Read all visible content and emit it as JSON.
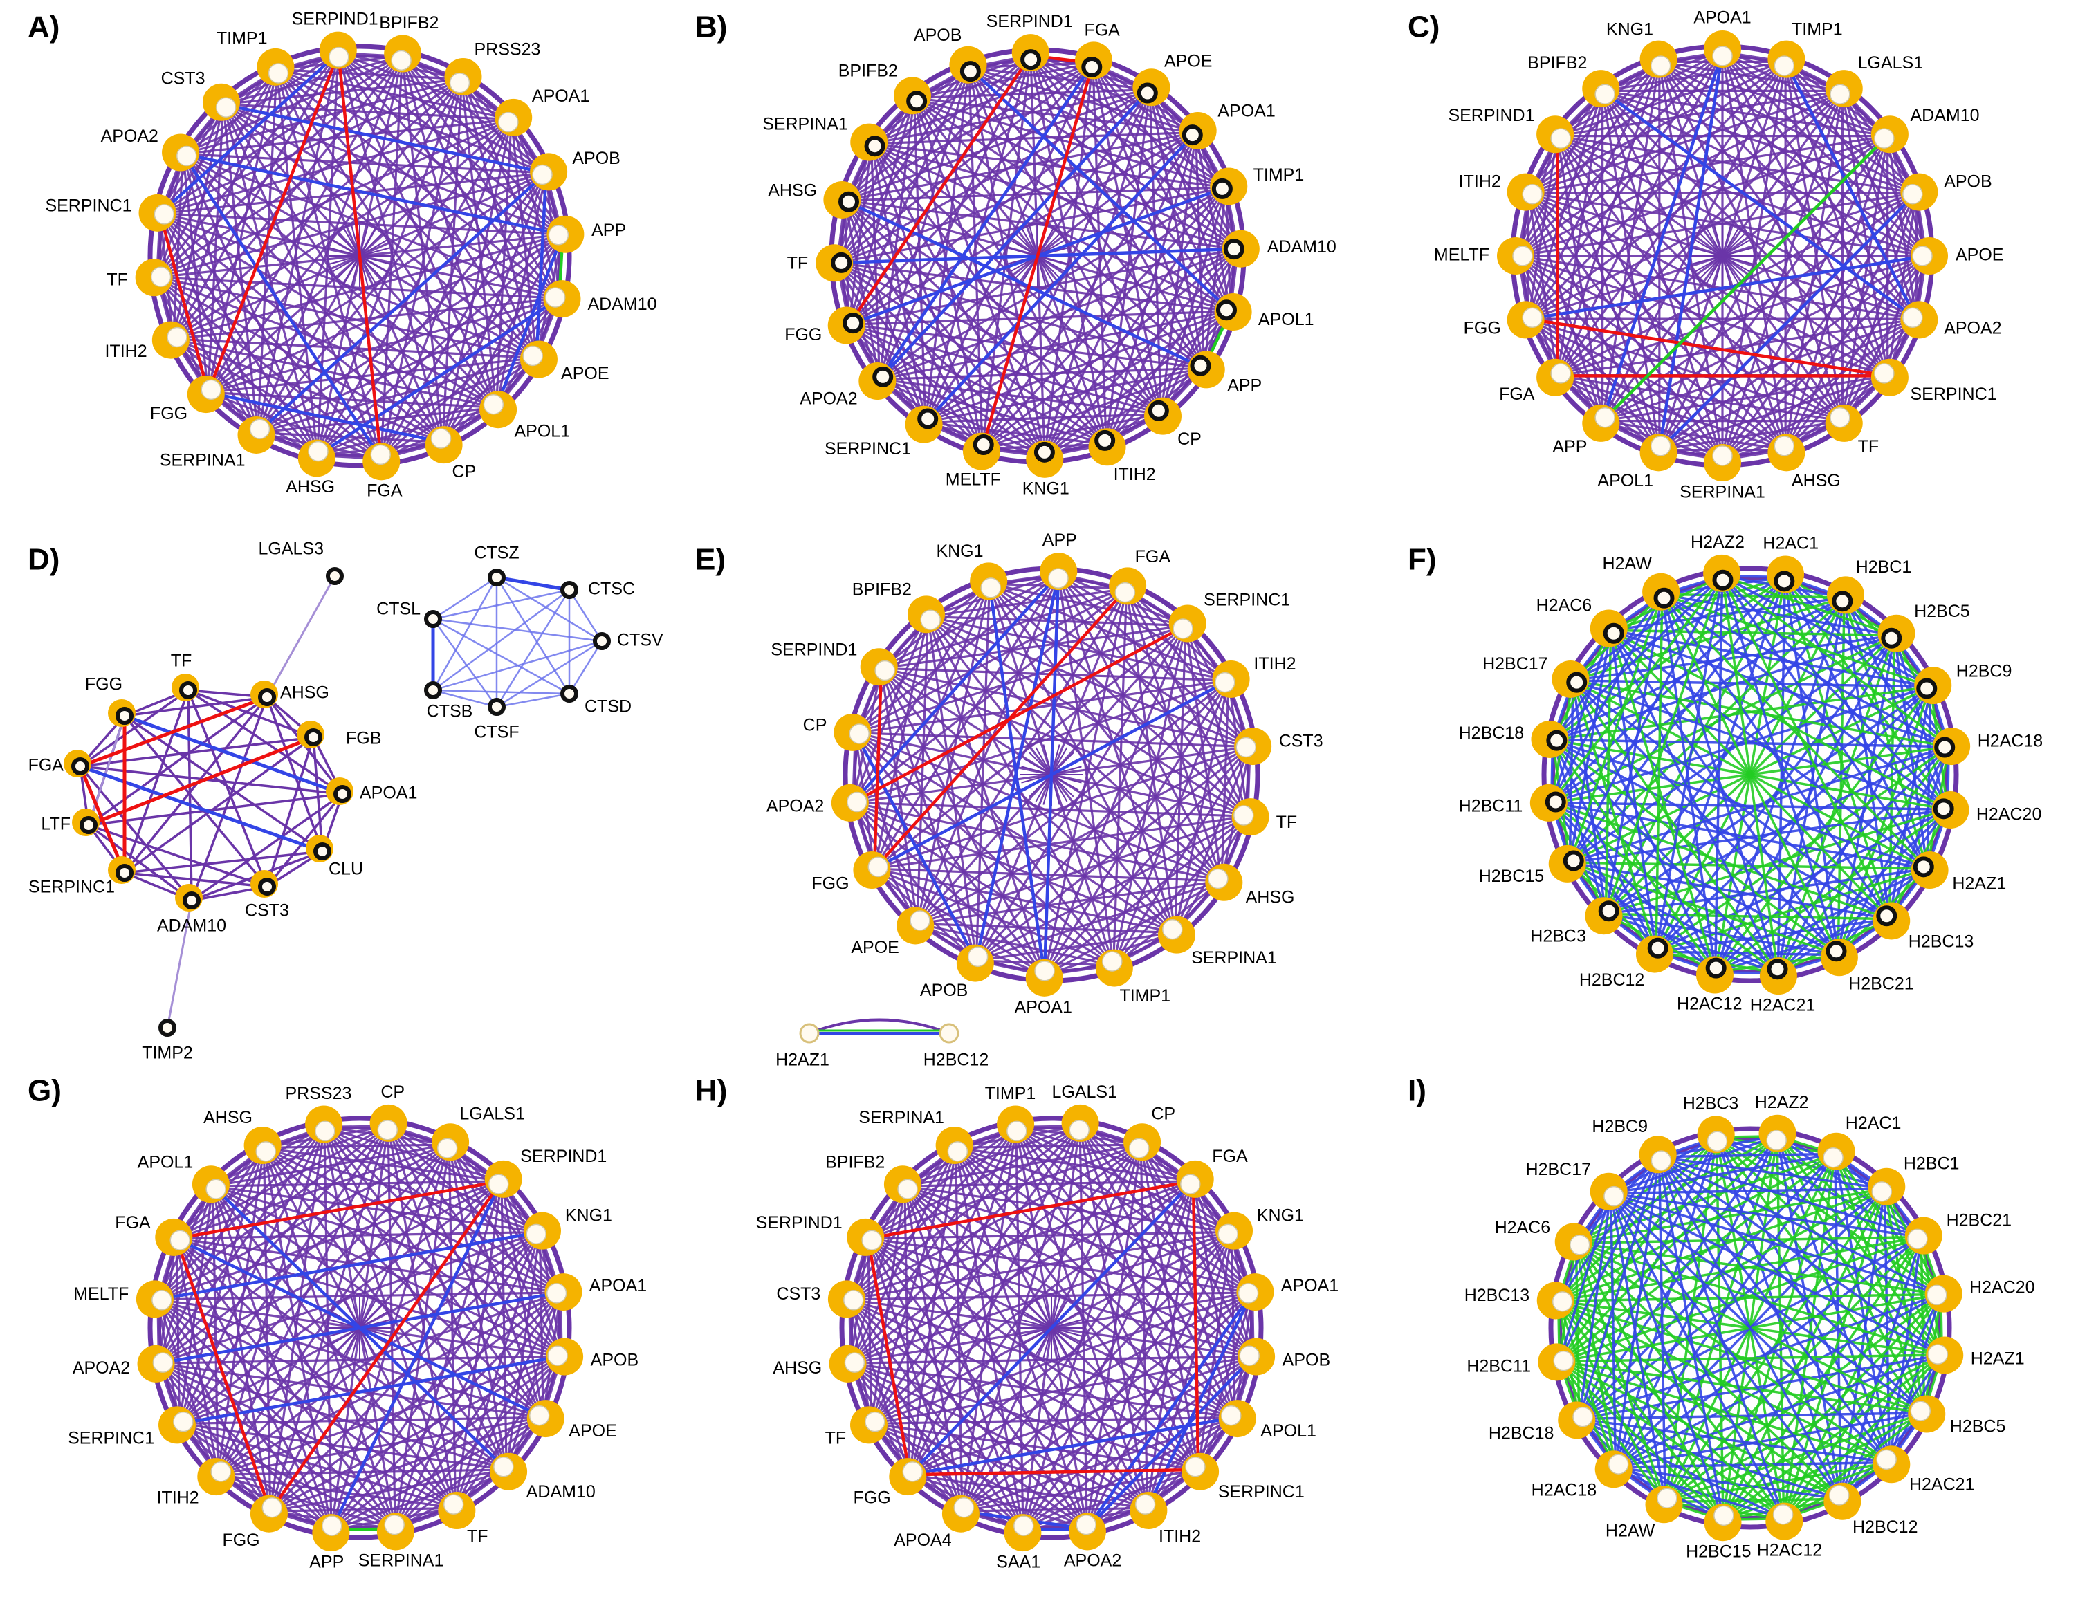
{
  "colors": {
    "edge_purple": "#6a35a8",
    "edge_blue": "#3345e6",
    "edge_red": "#ee1111",
    "edge_green": "#22cc22",
    "edge_lilac": "#a58fd6",
    "node_ring_orange": "#f5b300",
    "node_fill": "#fffaf0",
    "node_outline_dark": "#111111"
  },
  "panels": [
    {
      "letter": "A)",
      "layout": "circle",
      "style": "white",
      "nodes": [
        "SERPIND1",
        "BPIFB2",
        "PRSS23",
        "APOA1",
        "APOB",
        "APP",
        "ADAM10",
        "APOE",
        "APOL1",
        "CP",
        "FGA",
        "AHSG",
        "SERPINA1",
        "FGG",
        "ITIH2",
        "TF",
        "SERPINC1",
        "APOA2",
        "CST3",
        "TIMP1"
      ],
      "edges": {
        "blue": [
          [
            18,
            4
          ],
          [
            17,
            5
          ],
          [
            4,
            7
          ],
          [
            5,
            8
          ],
          [
            13,
            9
          ],
          [
            16,
            0
          ],
          [
            4,
            12
          ],
          [
            6,
            11
          ],
          [
            17,
            10
          ]
        ],
        "red": [
          [
            0,
            10
          ],
          [
            0,
            13
          ],
          [
            16,
            13
          ]
        ],
        "green": [
          [
            5,
            6
          ]
        ],
        "dense": "purple"
      }
    },
    {
      "letter": "B)",
      "layout": "circle",
      "style": "dark",
      "nodes": [
        "SERPIND1",
        "FGA",
        "APOE",
        "APOA1",
        "TIMP1",
        "ADAM10",
        "APOL1",
        "APP",
        "CP",
        "ITIH2",
        "KNG1",
        "MELTF",
        "SERPINC1",
        "APOA2",
        "FGG",
        "TF",
        "AHSG",
        "SERPINA1",
        "BPIFB2",
        "APOB"
      ],
      "edges": {
        "blue": [
          [
            0,
            14
          ],
          [
            1,
            13
          ],
          [
            3,
            12
          ],
          [
            2,
            13
          ],
          [
            7,
            16
          ],
          [
            4,
            14
          ],
          [
            19,
            6
          ],
          [
            5,
            15
          ]
        ],
        "red": [
          [
            0,
            14
          ],
          [
            1,
            11
          ],
          [
            0,
            1
          ]
        ],
        "green": [
          [
            6,
            7
          ]
        ],
        "dense": "purple"
      }
    },
    {
      "letter": "C)",
      "layout": "circle",
      "style": "white",
      "nodes": [
        "APOA1",
        "TIMP1",
        "LGALS1",
        "ADAM10",
        "APOB",
        "APOE",
        "APOA2",
        "SERPINC1",
        "TF",
        "AHSG",
        "SERPINA1",
        "APOL1",
        "APP",
        "FGA",
        "FGG",
        "MELTF",
        "ITIH2",
        "SERPIND1",
        "BPIFB2",
        "KNG1"
      ],
      "edges": {
        "blue": [
          [
            0,
            12
          ],
          [
            0,
            11
          ],
          [
            1,
            6
          ],
          [
            4,
            11
          ],
          [
            6,
            18
          ],
          [
            7,
            13
          ],
          [
            14,
            5
          ]
        ],
        "red": [
          [
            7,
            13
          ],
          [
            17,
            13
          ],
          [
            7,
            14
          ]
        ],
        "green": [
          [
            3,
            12
          ]
        ],
        "dense": "purple"
      }
    },
    {
      "letter": "D)",
      "layout": "custom",
      "style": "dark",
      "nodes": [
        "TF",
        "AHSG",
        "FGB",
        "APOA1",
        "CLU",
        "CST3",
        "ADAM10",
        "SERPINC1",
        "LTF",
        "FGA",
        "FGG",
        "LGALS3",
        "TIMP2",
        "CTSZ",
        "CTSC",
        "CTSV",
        "CTSD",
        "CTSF",
        "CTSB",
        "CTSL"
      ],
      "edges": {
        "blue": [
          [
            9,
            4
          ],
          [
            10,
            3
          ],
          [
            18,
            19
          ],
          [
            13,
            14
          ]
        ],
        "red": [
          [
            10,
            7
          ],
          [
            9,
            7
          ],
          [
            8,
            2
          ],
          [
            9,
            1
          ]
        ],
        "green": [],
        "dense": "none"
      }
    },
    {
      "letter": "E)",
      "layout": "circle",
      "style": "white",
      "nodes": [
        "APP",
        "FGA",
        "SERPINC1",
        "ITIH2",
        "CST3",
        "TF",
        "AHSG",
        "SERPINA1",
        "TIMP1",
        "APOA1",
        "APOB",
        "APOE",
        "FGG",
        "APOA2",
        "CP",
        "SERPIND1",
        "BPIFB2",
        "KNG1"
      ],
      "edges": {
        "blue": [
          [
            0,
            9
          ],
          [
            0,
            10
          ],
          [
            0,
            13
          ],
          [
            9,
            17
          ],
          [
            10,
            14
          ],
          [
            12,
            3
          ]
        ],
        "red": [
          [
            1,
            12
          ],
          [
            2,
            13
          ],
          [
            15,
            12
          ]
        ],
        "green": [],
        "dense": "purple"
      },
      "extra_nodes": [
        "H2AZ1",
        "H2BC12"
      ]
    },
    {
      "letter": "F)",
      "layout": "circle",
      "style": "dark",
      "nodes": [
        "H2AC1",
        "H2BC1",
        "H2BC5",
        "H2BC9",
        "H2AC18",
        "H2AC20",
        "H2AZ1",
        "H2BC13",
        "H2BC21",
        "H2AC21",
        "H2AC12",
        "H2BC12",
        "H2BC3",
        "H2BC15",
        "H2BC11",
        "H2BC18",
        "H2BC17",
        "H2AC6",
        "H2AW",
        "H2AZ2"
      ],
      "edges": {
        "blue": [],
        "red": [],
        "green": [],
        "dense": "blue-green"
      }
    },
    {
      "letter": "G)",
      "layout": "circle",
      "style": "white",
      "nodes": [
        "CP",
        "LGALS1",
        "SERPIND1",
        "KNG1",
        "APOA1",
        "APOB",
        "APOE",
        "ADAM10",
        "TF",
        "SERPINA1",
        "APP",
        "FGG",
        "ITIH2",
        "SERPINC1",
        "APOA2",
        "MELTF",
        "FGA",
        "APOL1",
        "AHSG",
        "PRSS23"
      ],
      "edges": {
        "blue": [
          [
            16,
            6
          ],
          [
            14,
            4
          ],
          [
            13,
            5
          ],
          [
            15,
            3
          ],
          [
            17,
            7
          ],
          [
            10,
            2
          ]
        ],
        "red": [
          [
            16,
            2
          ],
          [
            11,
            2
          ],
          [
            16,
            11
          ]
        ],
        "green": [
          [
            10,
            9
          ]
        ],
        "dense": "purple"
      }
    },
    {
      "letter": "H)",
      "layout": "circle",
      "style": "white",
      "nodes": [
        "LGALS1",
        "CP",
        "FGA",
        "KNG1",
        "APOA1",
        "APOB",
        "APOL1",
        "SERPINC1",
        "ITIH2",
        "APOA2",
        "SAA1",
        "APOA4",
        "FGG",
        "TF",
        "AHSG",
        "CST3",
        "SERPIND1",
        "BPIFB2",
        "SERPINA1",
        "TIMP1"
      ],
      "edges": {
        "blue": [
          [
            2,
            12
          ],
          [
            9,
            4
          ],
          [
            9,
            5
          ],
          [
            8,
            4
          ],
          [
            11,
            9
          ],
          [
            10,
            9
          ],
          [
            12,
            6
          ]
        ],
        "red": [
          [
            16,
            2
          ],
          [
            2,
            7
          ],
          [
            12,
            7
          ],
          [
            16,
            12
          ]
        ],
        "green": [],
        "dense": "purple"
      }
    },
    {
      "letter": "I)",
      "layout": "circle",
      "style": "white",
      "nodes": [
        "H2BC3",
        "H2AZ2",
        "H2AC1",
        "H2BC1",
        "H2BC21",
        "H2AC20",
        "H2AZ1",
        "H2BC5",
        "H2AC21",
        "H2BC12",
        "H2AC12",
        "H2BC15",
        "H2AW",
        "H2AC18",
        "H2BC18",
        "H2BC11",
        "H2BC13",
        "H2AC6",
        "H2BC17",
        "H2BC9"
      ],
      "edges": {
        "blue": [],
        "red": [],
        "green": [],
        "dense": "green-blue"
      }
    }
  ]
}
